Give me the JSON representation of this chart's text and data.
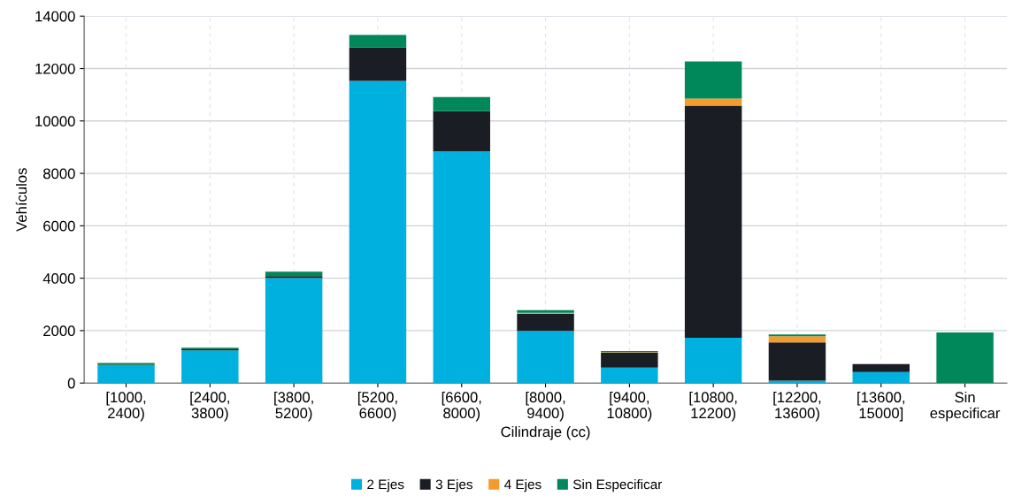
{
  "chart_data": {
    "type": "bar",
    "stacked": true,
    "xlabel": "Cilindraje (cc)",
    "ylabel": "Vehículos",
    "categories": [
      "[1000,\n2400)",
      "[2400,\n3800)",
      "[3800,\n5200)",
      "[5200,\n6600)",
      "[6600,\n8000)",
      "[8000,\n9400)",
      "[9400,\n10800)",
      "[10800,\n12200)",
      "[12200,\n13600)",
      "[13600,\n15000]",
      "Sin\nespecificar"
    ],
    "series": [
      {
        "name": "2 Ejes",
        "color": "#00b0de",
        "values": [
          670,
          1250,
          4010,
          11530,
          8840,
          1990,
          590,
          1730,
          90,
          420,
          0
        ]
      },
      {
        "name": "3 Ejes",
        "color": "#1a1d23",
        "values": [
          30,
          40,
          70,
          1270,
          1530,
          660,
          570,
          8850,
          1460,
          300,
          0
        ]
      },
      {
        "name": "4 Ejes",
        "color": "#f59a2c",
        "values": [
          0,
          0,
          0,
          0,
          0,
          30,
          20,
          270,
          240,
          0,
          0
        ]
      },
      {
        "name": "Sin Especificar",
        "color": "#00875a",
        "values": [
          70,
          60,
          170,
          480,
          540,
          100,
          40,
          1420,
          60,
          0,
          1930
        ]
      }
    ],
    "ylim": [
      0,
      14000
    ],
    "yticks": [
      0,
      2000,
      4000,
      6000,
      8000,
      10000,
      12000,
      14000
    ],
    "grid": true,
    "legend": "bottom"
  }
}
